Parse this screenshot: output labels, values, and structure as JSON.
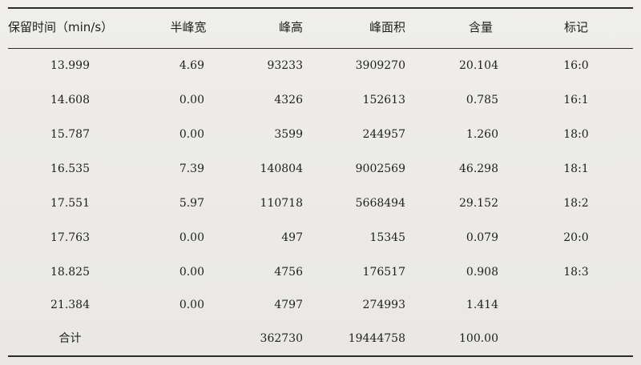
{
  "table": {
    "headers": [
      "保留时间（min/s）",
      "半峰宽",
      "峰高",
      "峰面积",
      "含量",
      "标记"
    ],
    "rows": [
      [
        "13.999",
        "4.69",
        "93233",
        "3909270",
        "20.104",
        "16:0"
      ],
      [
        "14.608",
        "0.00",
        "4326",
        "152613",
        "0.785",
        "16:1"
      ],
      [
        "15.787",
        "0.00",
        "3599",
        "244957",
        "1.260",
        "18:0"
      ],
      [
        "16.535",
        "7.39",
        "140804",
        "9002569",
        "46.298",
        "18:1"
      ],
      [
        "17.551",
        "5.97",
        "110718",
        "5668494",
        "29.152",
        "18:2"
      ],
      [
        "17.763",
        "0.00",
        "497",
        "15345",
        "0.079",
        "20:0"
      ],
      [
        "18.825",
        "0.00",
        "4756",
        "176517",
        "0.908",
        "18:3"
      ],
      [
        "21.384",
        "0.00",
        "4797",
        "274993",
        "1.414",
        ""
      ]
    ],
    "total": [
      "合计",
      "",
      "362730",
      "19444758",
      "100.00",
      ""
    ]
  }
}
